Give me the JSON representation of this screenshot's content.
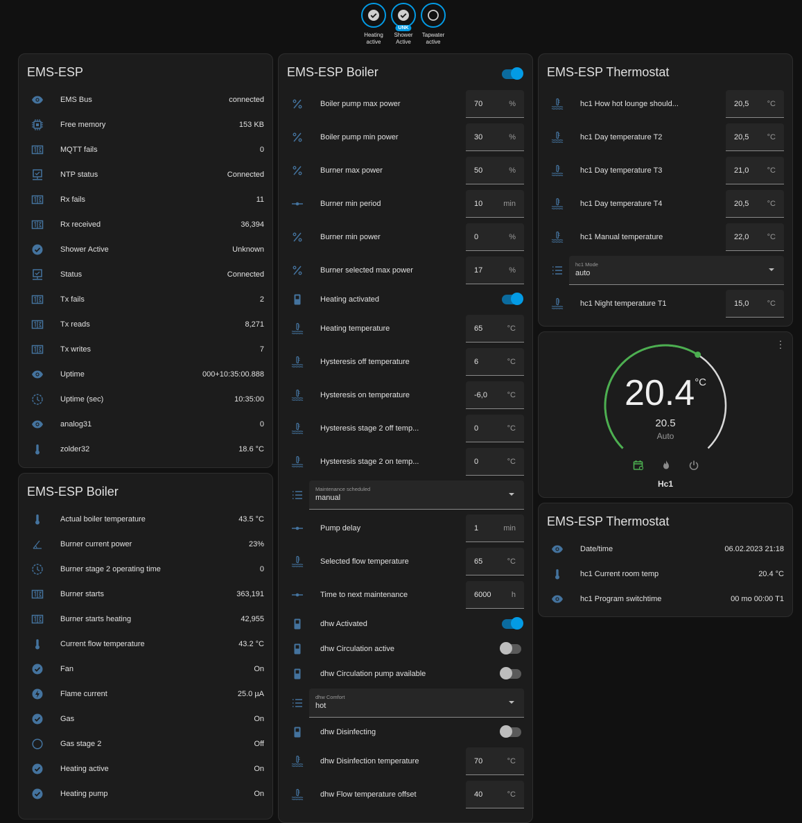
{
  "colors": {
    "accent": "#039be5",
    "icon": "#44739e",
    "green": "#4caf50"
  },
  "badges": [
    {
      "label": "Heating active",
      "icon": "check-circle-icon",
      "state": ""
    },
    {
      "label": "Shower Active",
      "icon": "check-circle-icon",
      "state": "UNK"
    },
    {
      "label": "Tapwater active",
      "icon": "circle-outline-icon",
      "state": ""
    }
  ],
  "ems_esp": {
    "title": "EMS-ESP",
    "rows": [
      {
        "icon": "eye",
        "name": "EMS Bus",
        "value": "connected"
      },
      {
        "icon": "chip",
        "name": "Free memory",
        "value": "153 KB"
      },
      {
        "icon": "counter",
        "name": "MQTT fails",
        "value": "0"
      },
      {
        "icon": "monitor",
        "name": "NTP status",
        "value": "Connected"
      },
      {
        "icon": "counter",
        "name": "Rx fails",
        "value": "11"
      },
      {
        "icon": "counter",
        "name": "Rx received",
        "value": "36,394"
      },
      {
        "icon": "check",
        "name": "Shower Active",
        "value": "Unknown"
      },
      {
        "icon": "monitor",
        "name": "Status",
        "value": "Connected"
      },
      {
        "icon": "counter",
        "name": "Tx fails",
        "value": "2"
      },
      {
        "icon": "counter",
        "name": "Tx reads",
        "value": "8,271"
      },
      {
        "icon": "counter",
        "name": "Tx writes",
        "value": "7"
      },
      {
        "icon": "eye",
        "name": "Uptime",
        "value": "000+10:35:00.888"
      },
      {
        "icon": "clock",
        "name": "Uptime (sec)",
        "value": "10:35:00"
      },
      {
        "icon": "eye",
        "name": "analog31",
        "value": "0"
      },
      {
        "icon": "thermometer",
        "name": "zolder32",
        "value": "18.6 °C"
      }
    ]
  },
  "boiler_sensors": {
    "title": "EMS-ESP Boiler",
    "rows": [
      {
        "icon": "thermometer",
        "name": "Actual boiler temperature",
        "value": "43.5 °C"
      },
      {
        "icon": "angle",
        "name": "Burner current power",
        "value": "23%"
      },
      {
        "icon": "clock",
        "name": "Burner stage 2 operating time",
        "value": "0"
      },
      {
        "icon": "counter",
        "name": "Burner starts",
        "value": "363,191"
      },
      {
        "icon": "counter",
        "name": "Burner starts heating",
        "value": "42,955"
      },
      {
        "icon": "thermometer",
        "name": "Current flow temperature",
        "value": "43.2 °C"
      },
      {
        "icon": "check",
        "name": "Fan",
        "value": "On"
      },
      {
        "icon": "flash",
        "name": "Flame current",
        "value": "25.0 µA"
      },
      {
        "icon": "check",
        "name": "Gas",
        "value": "On"
      },
      {
        "icon": "circle",
        "name": "Gas stage 2",
        "value": "Off"
      },
      {
        "icon": "check",
        "name": "Heating active",
        "value": "On"
      },
      {
        "icon": "check",
        "name": "Heating pump",
        "value": "On"
      }
    ]
  },
  "boiler_controls": {
    "title": "EMS-ESP Boiler",
    "header_toggle": true,
    "rows": [
      {
        "type": "num",
        "icon": "percent",
        "name": "Boiler pump max power",
        "value": "70",
        "unit": "%"
      },
      {
        "type": "num",
        "icon": "percent",
        "name": "Boiler pump min power",
        "value": "30",
        "unit": "%"
      },
      {
        "type": "num",
        "icon": "percent",
        "name": "Burner max power",
        "value": "50",
        "unit": "%"
      },
      {
        "type": "num",
        "icon": "slider",
        "name": "Burner min period",
        "value": "10",
        "unit": "min"
      },
      {
        "type": "num",
        "icon": "percent",
        "name": "Burner min power",
        "value": "0",
        "unit": "%"
      },
      {
        "type": "num",
        "icon": "percent",
        "name": "Burner selected max power",
        "value": "17",
        "unit": "%"
      },
      {
        "type": "toggle",
        "icon": "switch",
        "name": "Heating activated",
        "on": true
      },
      {
        "type": "num",
        "icon": "water-temp",
        "name": "Heating temperature",
        "value": "65",
        "unit": "°C"
      },
      {
        "type": "num",
        "icon": "water-temp",
        "name": "Hysteresis off temperature",
        "value": "6",
        "unit": "°C"
      },
      {
        "type": "num",
        "icon": "water-temp",
        "name": "Hysteresis on temperature",
        "value": "-6,0",
        "unit": "°C"
      },
      {
        "type": "num",
        "icon": "water-temp",
        "name": "Hysteresis stage 2 off temp...",
        "value": "0",
        "unit": "°C"
      },
      {
        "type": "num",
        "icon": "water-temp",
        "name": "Hysteresis stage 2 on temp...",
        "value": "0",
        "unit": "°C"
      },
      {
        "type": "select",
        "icon": "list",
        "name": "Maintenance scheduled",
        "value": "manual"
      },
      {
        "type": "num",
        "icon": "slider",
        "name": "Pump delay",
        "value": "1",
        "unit": "min"
      },
      {
        "type": "num",
        "icon": "water-temp",
        "name": "Selected flow temperature",
        "value": "65",
        "unit": "°C"
      },
      {
        "type": "num",
        "icon": "slider",
        "name": "Time to next maintenance",
        "value": "6000",
        "unit": "h"
      },
      {
        "type": "toggle",
        "icon": "switch",
        "name": "dhw Activated",
        "on": true
      },
      {
        "type": "toggle",
        "icon": "switch",
        "name": "dhw Circulation active",
        "on": false
      },
      {
        "type": "toggle",
        "icon": "switch",
        "name": "dhw Circulation pump available",
        "on": false
      },
      {
        "type": "select",
        "icon": "list",
        "name": "dhw Comfort",
        "value": "hot"
      },
      {
        "type": "toggle",
        "icon": "switch",
        "name": "dhw Disinfecting",
        "on": false
      },
      {
        "type": "num",
        "icon": "water-temp",
        "name": "dhw Disinfection temperature",
        "value": "70",
        "unit": "°C"
      },
      {
        "type": "num",
        "icon": "water-temp",
        "name": "dhw Flow temperature offset",
        "value": "40",
        "unit": "°C"
      }
    ]
  },
  "thermostat_controls": {
    "title": "EMS-ESP Thermostat",
    "rows": [
      {
        "type": "num",
        "icon": "water-temp",
        "name": "hc1 How hot lounge should...",
        "value": "20,5",
        "unit": "°C"
      },
      {
        "type": "num",
        "icon": "water-temp",
        "name": "hc1 Day temperature T2",
        "value": "20,5",
        "unit": "°C"
      },
      {
        "type": "num",
        "icon": "water-temp",
        "name": "hc1 Day temperature T3",
        "value": "21,0",
        "unit": "°C"
      },
      {
        "type": "num",
        "icon": "water-temp",
        "name": "hc1 Day temperature T4",
        "value": "20,5",
        "unit": "°C"
      },
      {
        "type": "num",
        "icon": "water-temp",
        "name": "hc1 Manual temperature",
        "value": "22,0",
        "unit": "°C"
      },
      {
        "type": "select",
        "icon": "list",
        "name": "hc1 Mode",
        "value": "auto"
      },
      {
        "type": "num",
        "icon": "water-temp",
        "name": "hc1 Night temperature T1",
        "value": "15,0",
        "unit": "°C"
      }
    ]
  },
  "thermostat": {
    "current": "20.4",
    "unit": "°C",
    "target": "20.5",
    "mode": "Auto",
    "name": "Hc1",
    "target_fraction": 0.62
  },
  "thermostat_sensors": {
    "title": "EMS-ESP Thermostat",
    "rows": [
      {
        "icon": "eye",
        "name": "Date/time",
        "value": "06.02.2023 21:18"
      },
      {
        "icon": "thermometer",
        "name": "hc1 Current room temp",
        "value": "20.4 °C"
      },
      {
        "icon": "eye",
        "name": "hc1 Program switchtime",
        "value": "00 mo 00:00 T1"
      }
    ]
  }
}
